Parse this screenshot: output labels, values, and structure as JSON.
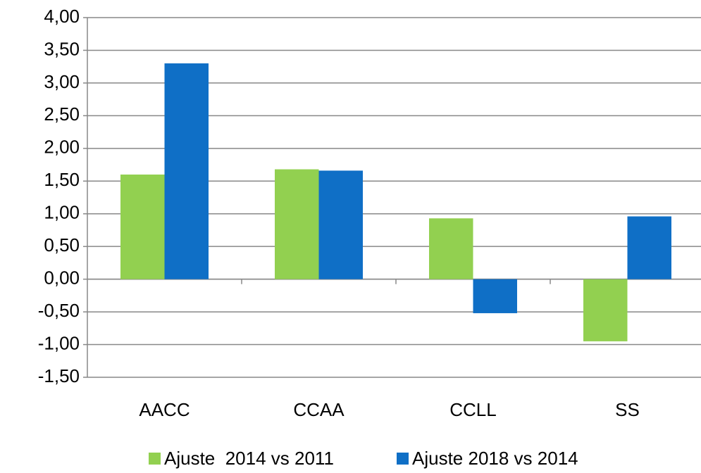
{
  "chart_data": {
    "type": "bar",
    "categories": [
      "AACC",
      "CCAA",
      "CCLL",
      "SS"
    ],
    "series": [
      {
        "name": "Ajuste  2014 vs 2011",
        "color": "#92d050",
        "values": [
          1.6,
          1.68,
          0.93,
          -0.95
        ]
      },
      {
        "name": "Ajuste 2018 vs 2014",
        "color": "#0f6fc6",
        "values": [
          3.3,
          1.66,
          -0.52,
          0.96
        ]
      }
    ],
    "ylim": [
      -1.5,
      4.0
    ],
    "yticks": [
      {
        "value": -1.5,
        "label": "-1,50"
      },
      {
        "value": -1.0,
        "label": "-1,00"
      },
      {
        "value": -0.5,
        "label": "-0,50"
      },
      {
        "value": 0,
        "label": "0,00"
      },
      {
        "value": 0.5,
        "label": "0,50"
      },
      {
        "value": 1.0,
        "label": "1,00"
      },
      {
        "value": 1.5,
        "label": "1,50"
      },
      {
        "value": 2.0,
        "label": "2,00"
      },
      {
        "value": 2.5,
        "label": "2,50"
      },
      {
        "value": 3.0,
        "label": "3,00"
      },
      {
        "value": 3.5,
        "label": "3,50"
      },
      {
        "value": 4.0,
        "label": "4,00"
      }
    ],
    "grid": true,
    "legend": "bottom"
  }
}
